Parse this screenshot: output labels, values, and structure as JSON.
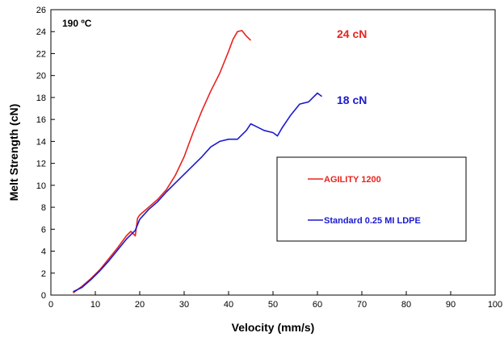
{
  "chart_data": {
    "type": "line",
    "title": "",
    "xlabel": "Velocity (mm/s)",
    "ylabel": "Melt Strength (cN)",
    "xlim": [
      0,
      100
    ],
    "ylim": [
      0,
      26
    ],
    "xticks": [
      0,
      10,
      20,
      30,
      40,
      50,
      60,
      70,
      80,
      90,
      100
    ],
    "yticks": [
      0,
      2,
      4,
      6,
      8,
      10,
      12,
      14,
      16,
      18,
      20,
      22,
      24,
      26
    ],
    "grid": false,
    "legend_position": "center-right",
    "annotations": {
      "temperature": "190 ºC",
      "agility_peak": "24 cN",
      "ldpe_peak": "18 cN"
    },
    "series": [
      {
        "name": "AGILITY 1200",
        "color": "#e8231f",
        "x": [
          5,
          7,
          9,
          11,
          13,
          15,
          17,
          18,
          19,
          19.5,
          20,
          22,
          24,
          26,
          28,
          30,
          32,
          34,
          36,
          38,
          40,
          41,
          42,
          43,
          44,
          45
        ],
        "y": [
          0.2,
          0.8,
          1.5,
          2.3,
          3.3,
          4.3,
          5.4,
          5.8,
          5.4,
          7.0,
          7.3,
          8.0,
          8.7,
          9.6,
          10.9,
          12.6,
          14.8,
          16.8,
          18.6,
          20.2,
          22.2,
          23.3,
          24.0,
          24.1,
          23.6,
          23.2
        ]
      },
      {
        "name": "Standard 0.25 MI LDPE",
        "color": "#1a1acf",
        "x": [
          5,
          7,
          9,
          11,
          13,
          15,
          17,
          19,
          20,
          22,
          24,
          26,
          28,
          30,
          32,
          34,
          36,
          38,
          40,
          42,
          44,
          45,
          46,
          48,
          50,
          51,
          52,
          54,
          56,
          58,
          59,
          60,
          61
        ],
        "y": [
          0.3,
          0.7,
          1.4,
          2.2,
          3.1,
          4.1,
          5.1,
          5.9,
          6.9,
          7.8,
          8.5,
          9.4,
          10.2,
          11.0,
          11.8,
          12.6,
          13.5,
          14.0,
          14.2,
          14.2,
          15.0,
          15.6,
          15.4,
          15.0,
          14.8,
          14.5,
          15.2,
          16.4,
          17.4,
          17.6,
          18.0,
          18.4,
          18.1
        ]
      }
    ]
  }
}
